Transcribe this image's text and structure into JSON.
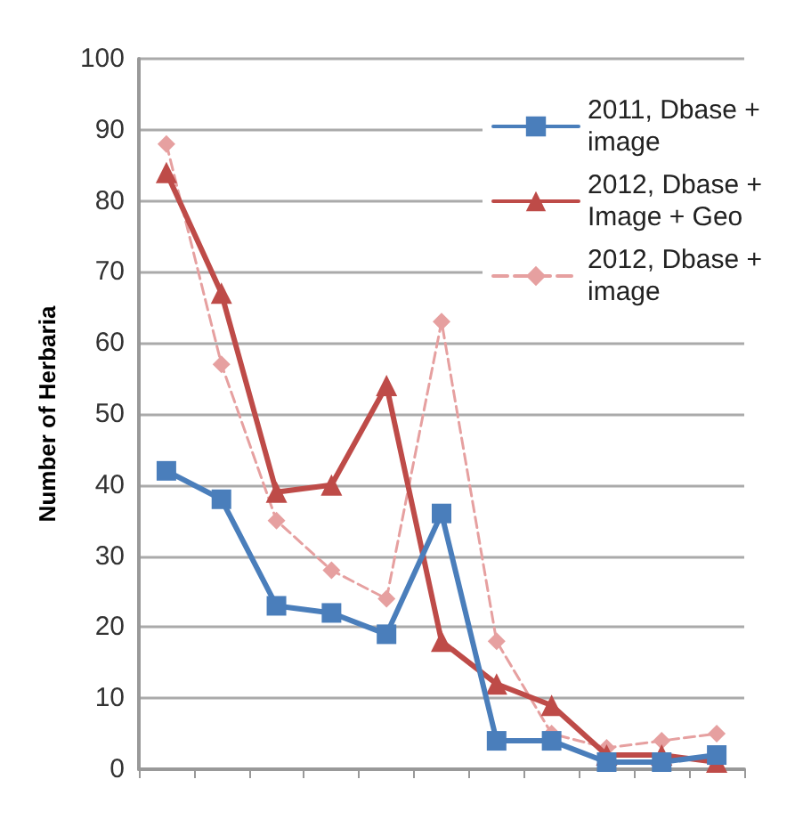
{
  "chart_data": {
    "type": "line",
    "ylabel": "Number of Herbaria",
    "categories": [
      null,
      null,
      null,
      null,
      null,
      null,
      null,
      null,
      null,
      null,
      null
    ],
    "ylim": [
      0,
      100
    ],
    "yticks": [
      0,
      10,
      20,
      30,
      40,
      50,
      60,
      70,
      80,
      90,
      100
    ],
    "grid": "y",
    "legend": "top right",
    "series": [
      {
        "name": "2011, Dbase +\nimage",
        "color": "#4a7ebb",
        "marker": "square",
        "line_style": "solid",
        "values": [
          42,
          38,
          23,
          22,
          19,
          36,
          4,
          4,
          1,
          1,
          2
        ]
      },
      {
        "name": "2012, Dbase +\nImage + Geo",
        "color": "#be4b48",
        "marker": "triangle",
        "line_style": "solid",
        "values": [
          84,
          67,
          39,
          40,
          54,
          18,
          12,
          9,
          2,
          2,
          1
        ]
      },
      {
        "name": "2012, Dbase +\nimage",
        "color": "#e6a0a0",
        "marker": "diamond",
        "line_style": "dashed",
        "values": [
          88,
          57,
          35,
          28,
          24,
          63,
          18,
          5,
          3,
          4,
          5
        ]
      }
    ]
  }
}
